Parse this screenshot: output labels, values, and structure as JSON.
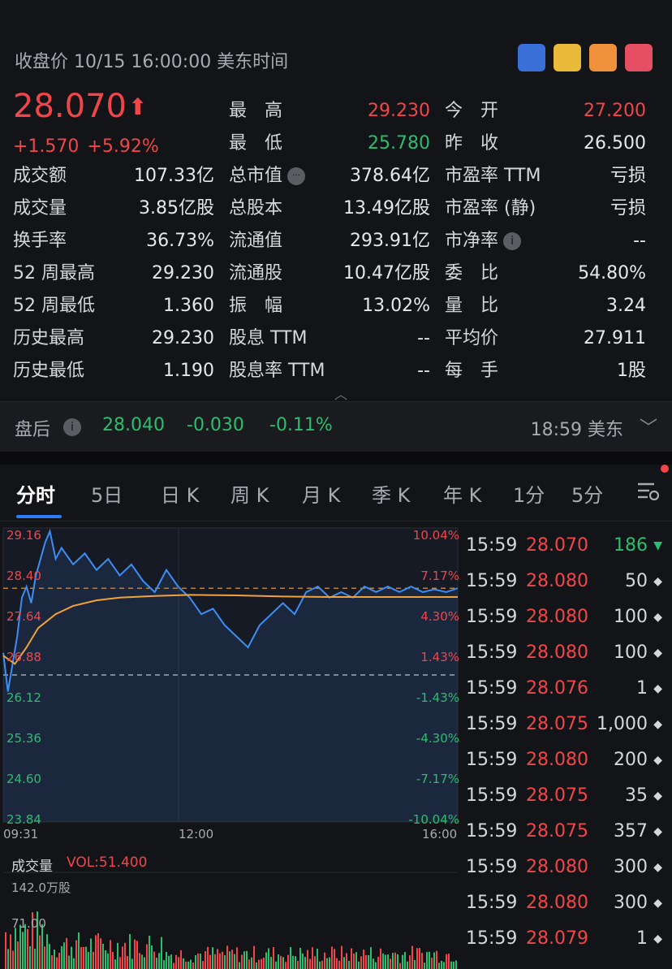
{
  "header": {
    "close_label": "收盘价 10/15 16:00:00 美东时间",
    "flags": [
      {
        "name": "flag-icon-1",
        "color": "#3b6fd8"
      },
      {
        "name": "flag-icon-2",
        "color": "#e9b93a"
      },
      {
        "name": "flag-icon-3",
        "color": "#f0913c"
      },
      {
        "name": "flag-icon-4",
        "color": "#e54f63"
      }
    ]
  },
  "quote": {
    "price": "28.070",
    "change": "+1.570",
    "change_pct": "+5.92%"
  },
  "stats": {
    "col1": [
      {
        "label": "成交额",
        "value": "107.33亿"
      },
      {
        "label": "成交量",
        "value": "3.85亿股"
      },
      {
        "label": "换手率",
        "value": "36.73%"
      },
      {
        "label": "52 周最高",
        "value": "29.230"
      },
      {
        "label": "52 周最低",
        "value": "1.360"
      },
      {
        "label": "历史最高",
        "value": "29.230"
      },
      {
        "label": "历史最低",
        "value": "1.190"
      }
    ],
    "col2": [
      {
        "label": "最　高",
        "value": "29.230"
      },
      {
        "label": "最　低",
        "value": "25.780"
      },
      {
        "label": "总市值",
        "value": "378.64亿"
      },
      {
        "label": "总股本",
        "value": "13.49亿股"
      },
      {
        "label": "流通值",
        "value": "293.91亿"
      },
      {
        "label": "流通股",
        "value": "10.47亿股"
      },
      {
        "label": "振　幅",
        "value": "13.02%"
      },
      {
        "label": "股息 TTM",
        "value": "--"
      },
      {
        "label": "股息率 TTM",
        "value": "--"
      }
    ],
    "col3": [
      {
        "label": "今　开",
        "value": "27.200"
      },
      {
        "label": "昨　收",
        "value": "26.500"
      },
      {
        "label": "市盈率 TTM",
        "value": "亏损"
      },
      {
        "label": "市盈率 (静)",
        "value": "亏损"
      },
      {
        "label": "市净率",
        "value": "--"
      },
      {
        "label": "委　比",
        "value": "54.80%"
      },
      {
        "label": "量　比",
        "value": "3.24"
      },
      {
        "label": "平均价",
        "value": "27.911"
      },
      {
        "label": "每　手",
        "value": "1股"
      }
    ],
    "info_glyph": "i",
    "more_glyph": "···"
  },
  "after_hours": {
    "label": "盘后",
    "price": "28.040",
    "change": "-0.030",
    "change_pct": "-0.11%",
    "time": "18:59 美东"
  },
  "tabs": [
    "分时",
    "5日",
    "日 K",
    "周 K",
    "月 K",
    "季 K",
    "年 K",
    "1分",
    "5分"
  ],
  "chart": {
    "left_ticks": [
      "29.16",
      "28.40",
      "27.64",
      "26.88",
      "26.12",
      "25.36",
      "24.60",
      "23.84"
    ],
    "right_ticks": [
      "10.04%",
      "7.17%",
      "4.30%",
      "1.43%",
      "-1.43%",
      "-4.30%",
      "-7.17%",
      "-10.04%"
    ],
    "time_ticks": [
      "09:31",
      "12:00",
      "16:00"
    ],
    "prev_close": 26.5,
    "avg_price": 27.911,
    "last_price": 28.07,
    "ylim": [
      23.84,
      29.16
    ],
    "colors": {
      "price": "#3c8ef5",
      "avg": "#f3a23b",
      "up": "#f0464a",
      "down": "#2dbd6e"
    }
  },
  "chart_data": {
    "type": "line",
    "series": [
      {
        "x": [
          0,
          4,
          8,
          12,
          16,
          20,
          24,
          28,
          32,
          36,
          40,
          45,
          50,
          60,
          70,
          80,
          90,
          100,
          110,
          120,
          130,
          140,
          150,
          160,
          170,
          180,
          190,
          200,
          210,
          220,
          230,
          240,
          250,
          260,
          270,
          280,
          290,
          300,
          310,
          320,
          330,
          340,
          350,
          360,
          370,
          380,
          390
        ],
        "values": [
          26.9,
          26.2,
          26.7,
          27.2,
          27.9,
          28.1,
          27.8,
          28.3,
          28.6,
          28.9,
          29.1,
          28.6,
          28.8,
          28.5,
          28.7,
          28.4,
          28.6,
          28.3,
          28.5,
          28.2,
          28.0,
          28.4,
          28.1,
          27.9,
          27.6,
          27.7,
          27.4,
          27.2,
          27.0,
          27.4,
          27.6,
          27.8,
          27.6,
          28.0,
          28.1,
          27.9,
          28.0,
          27.9,
          28.1,
          28.0,
          28.1,
          28.0,
          28.1,
          28.0,
          28.05,
          28.0,
          28.07
        ]
      },
      {
        "x": [
          0,
          10,
          20,
          30,
          45,
          60,
          80,
          100,
          130,
          160,
          200,
          240,
          280,
          320,
          360,
          390
        ],
        "values": [
          26.85,
          26.7,
          27.0,
          27.35,
          27.6,
          27.75,
          27.85,
          27.9,
          27.93,
          27.95,
          27.94,
          27.92,
          27.91,
          27.91,
          27.91,
          27.91
        ]
      }
    ],
    "volume_label": "成交量",
    "volume_value": "VOL:51.400",
    "volume_max": "142.0万股",
    "volume_mid": "71.00",
    "ylim": [
      23.84,
      29.16
    ]
  },
  "trades": [
    {
      "time": "15:59",
      "price": "28.070",
      "qty": "186",
      "mark": "▼",
      "green": true
    },
    {
      "time": "15:59",
      "price": "28.080",
      "qty": "50",
      "mark": "◆",
      "green": false
    },
    {
      "time": "15:59",
      "price": "28.080",
      "qty": "100",
      "mark": "◆",
      "green": false
    },
    {
      "time": "15:59",
      "price": "28.080",
      "qty": "100",
      "mark": "◆",
      "green": false
    },
    {
      "time": "15:59",
      "price": "28.076",
      "qty": "1",
      "mark": "◆",
      "green": false
    },
    {
      "time": "15:59",
      "price": "28.075",
      "qty": "1,000",
      "mark": "◆",
      "green": false
    },
    {
      "time": "15:59",
      "price": "28.080",
      "qty": "200",
      "mark": "◆",
      "green": false
    },
    {
      "time": "15:59",
      "price": "28.075",
      "qty": "35",
      "mark": "◆",
      "green": false
    },
    {
      "time": "15:59",
      "price": "28.075",
      "qty": "357",
      "mark": "◆",
      "green": false
    },
    {
      "time": "15:59",
      "price": "28.080",
      "qty": "300",
      "mark": "◆",
      "green": false
    },
    {
      "time": "15:59",
      "price": "28.080",
      "qty": "300",
      "mark": "◆",
      "green": false
    },
    {
      "time": "15:59",
      "price": "28.079",
      "qty": "1",
      "mark": "◆",
      "green": false
    }
  ]
}
